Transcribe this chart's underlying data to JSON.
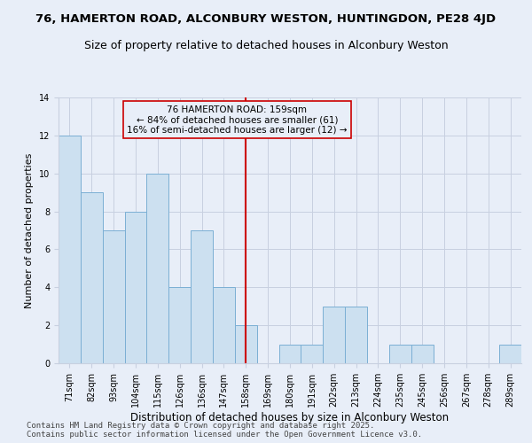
{
  "title_line1": "76, HAMERTON ROAD, ALCONBURY WESTON, HUNTINGDON, PE28 4JD",
  "title_line2": "Size of property relative to detached houses in Alconbury Weston",
  "xlabel": "Distribution of detached houses by size in Alconbury Weston",
  "ylabel": "Number of detached properties",
  "categories": [
    "71sqm",
    "82sqm",
    "93sqm",
    "104sqm",
    "115sqm",
    "126sqm",
    "136sqm",
    "147sqm",
    "158sqm",
    "169sqm",
    "180sqm",
    "191sqm",
    "202sqm",
    "213sqm",
    "224sqm",
    "235sqm",
    "245sqm",
    "256sqm",
    "267sqm",
    "278sqm",
    "289sqm"
  ],
  "values": [
    12,
    9,
    7,
    8,
    10,
    4,
    7,
    4,
    2,
    0,
    1,
    1,
    3,
    3,
    0,
    1,
    1,
    0,
    0,
    0,
    1
  ],
  "bar_color": "#cce0f0",
  "bar_edge_color": "#7bafd4",
  "vline_x_index": 8,
  "vline_color": "#cc0000",
  "annotation_text": "76 HAMERTON ROAD: 159sqm\n← 84% of detached houses are smaller (61)\n16% of semi-detached houses are larger (12) →",
  "ylim": [
    0,
    14
  ],
  "yticks": [
    0,
    2,
    4,
    6,
    8,
    10,
    12,
    14
  ],
  "grid_color": "#c8d0e0",
  "background_color": "#e8eef8",
  "footer_text": "Contains HM Land Registry data © Crown copyright and database right 2025.\nContains public sector information licensed under the Open Government Licence v3.0.",
  "title_fontsize": 9.5,
  "subtitle_fontsize": 9,
  "xlabel_fontsize": 8.5,
  "ylabel_fontsize": 8,
  "tick_fontsize": 7,
  "annotation_fontsize": 7.5,
  "footer_fontsize": 6.5
}
